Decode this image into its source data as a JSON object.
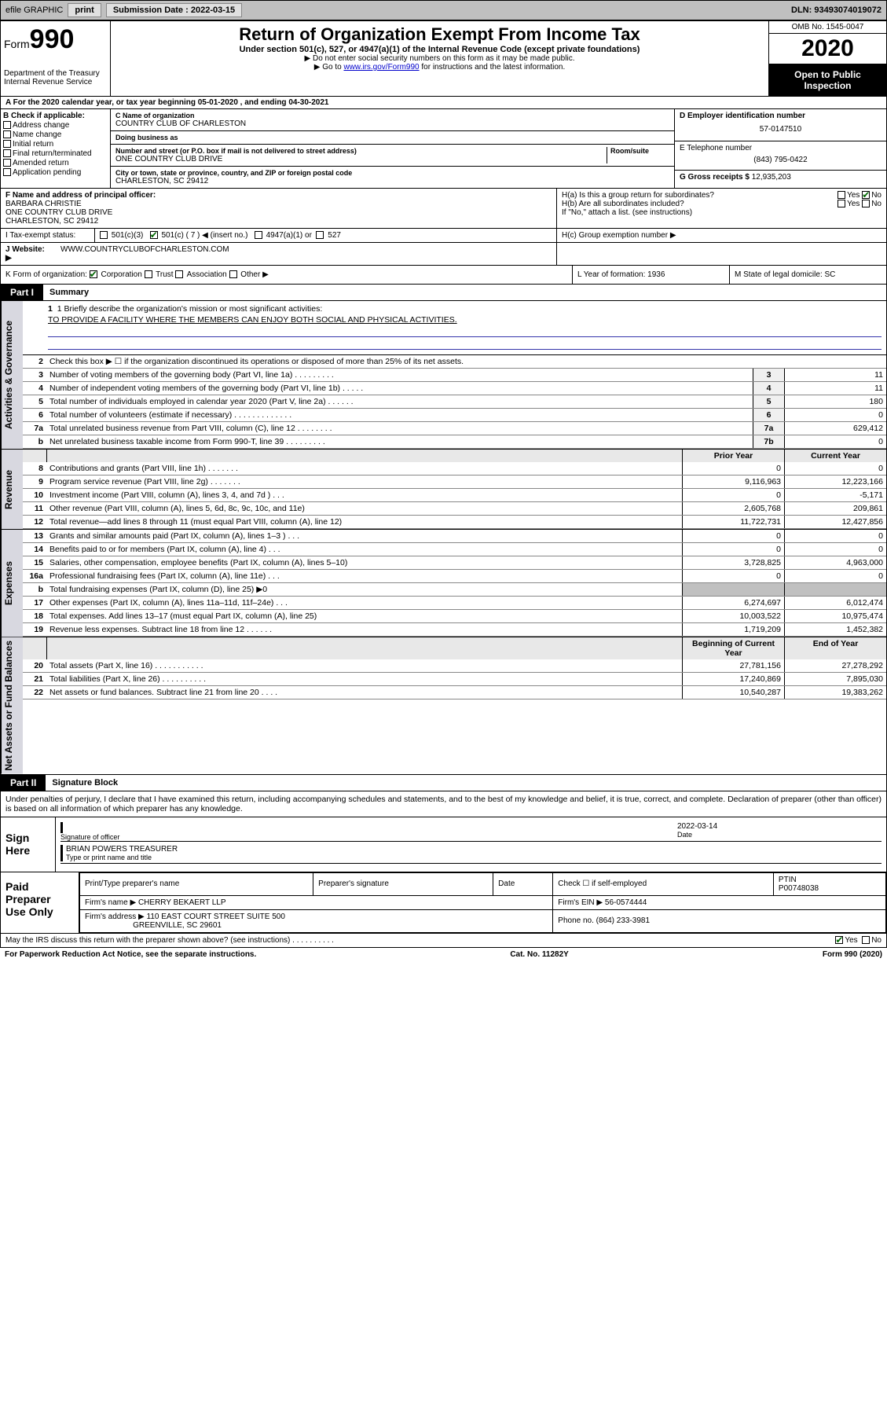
{
  "topbar": {
    "efile": "efile GRAPHIC",
    "print": "print",
    "subdate_lbl": "Submission Date :",
    "subdate": "2022-03-15",
    "dln_lbl": "DLN:",
    "dln": "93493074019072"
  },
  "header": {
    "form_lbl": "Form",
    "form_num": "990",
    "dept1": "Department of the Treasury",
    "dept2": "Internal Revenue Service",
    "title": "Return of Organization Exempt From Income Tax",
    "sub": "Under section 501(c), 527, or 4947(a)(1) of the Internal Revenue Code (except private foundations)",
    "note1": "▶ Do not enter social security numbers on this form as it may be made public.",
    "note2_pre": "▶ Go to ",
    "note2_link": "www.irs.gov/Form990",
    "note2_post": " for instructions and the latest information.",
    "omb": "OMB No. 1545-0047",
    "year": "2020",
    "open": "Open to Public Inspection"
  },
  "period": {
    "text": "A For the 2020 calendar year, or tax year beginning 05-01-2020    , and ending 04-30-2021"
  },
  "blockB": {
    "hdr": "B Check if applicable:",
    "c1": "Address change",
    "c2": "Name change",
    "c3": "Initial return",
    "c4": "Final return/terminated",
    "c5": "Amended return",
    "c6": "Application pending"
  },
  "blockC": {
    "name_lbl": "C Name of organization",
    "name": "COUNTRY CLUB OF CHARLESTON",
    "dba_lbl": "Doing business as",
    "dba": "",
    "addr_lbl": "Number and street (or P.O. box if mail is not delivered to street address)",
    "room_lbl": "Room/suite",
    "addr": "ONE COUNTRY CLUB DRIVE",
    "city_lbl": "City or town, state or province, country, and ZIP or foreign postal code",
    "city": "CHARLESTON, SC  29412"
  },
  "blockD": {
    "ein_lbl": "D Employer identification number",
    "ein": "57-0147510",
    "tel_lbl": "E Telephone number",
    "tel": "(843) 795-0422",
    "gross_lbl": "G Gross receipts $",
    "gross": "12,935,203"
  },
  "blockF": {
    "lbl": "F  Name and address of principal officer:",
    "name": "BARBARA CHRISTIE",
    "addr1": "ONE COUNTRY CLUB DRIVE",
    "addr2": "CHARLESTON, SC  29412"
  },
  "blockH": {
    "ha": "H(a)  Is this a group return for subordinates?",
    "hb": "H(b)  Are all subordinates included?",
    "hb_note": "If \"No,\" attach a list. (see instructions)",
    "hc": "H(c)  Group exemption number ▶",
    "yes": "Yes",
    "no": "No"
  },
  "taxstatus": {
    "lbl": "I   Tax-exempt status:",
    "o1": "501(c)(3)",
    "o2": "501(c) ( 7 ) ◀ (insert no.)",
    "o3": "4947(a)(1) or",
    "o4": "527"
  },
  "website": {
    "lbl": "J   Website: ▶",
    "val": "WWW.COUNTRYCLUBOFCHARLESTON.COM"
  },
  "rowK": {
    "k": "K Form of organization:",
    "corp": "Corporation",
    "trust": "Trust",
    "assoc": "Association",
    "other": "Other ▶",
    "l_lbl": "L Year of formation:",
    "l_val": "1936",
    "m_lbl": "M State of legal domicile:",
    "m_val": "SC"
  },
  "part1": {
    "tab": "Part I",
    "title": "Summary",
    "mission_lbl": "1  Briefly describe the organization's mission or most significant activities:",
    "mission": "TO PROVIDE A FACILITY WHERE THE MEMBERS CAN ENJOY BOTH SOCIAL AND PHYSICAL ACTIVITIES.",
    "l2": "Check this box ▶ ☐  if the organization discontinued its operations or disposed of more than 25% of its net assets.",
    "sidelabels": {
      "gov": "Activities & Governance",
      "rev": "Revenue",
      "exp": "Expenses",
      "net": "Net Assets or Fund Balances"
    },
    "govLines": [
      {
        "n": "2",
        "t": "Check this box ▶ ☐  if the organization discontinued its operations or disposed of more than 25% of its net assets.",
        "cn": "",
        "v": ""
      },
      {
        "n": "3",
        "t": "Number of voting members of the governing body (Part VI, line 1a)   .    .    .    .    .    .    .    .    .",
        "cn": "3",
        "v": "11"
      },
      {
        "n": "4",
        "t": "Number of independent voting members of the governing body (Part VI, line 1b)   .    .    .    .    .",
        "cn": "4",
        "v": "11"
      },
      {
        "n": "5",
        "t": "Total number of individuals employed in calendar year 2020 (Part V, line 2a)   .    .    .    .    .    .",
        "cn": "5",
        "v": "180"
      },
      {
        "n": "6",
        "t": "Total number of volunteers (estimate if necessary)   .    .    .    .    .    .    .    .    .    .    .    .    .",
        "cn": "6",
        "v": "0"
      },
      {
        "n": "7a",
        "t": "Total unrelated business revenue from Part VIII, column (C), line 12   .    .    .    .    .    .    .    .",
        "cn": "7a",
        "v": "629,412"
      },
      {
        "n": "b",
        "t": "Net unrelated business taxable income from Form 990-T, line 39   .    .    .    .    .    .    .    .    .",
        "cn": "7b",
        "v": "0"
      }
    ],
    "colhdr": {
      "prior": "Prior Year",
      "current": "Current Year"
    },
    "revLines": [
      {
        "n": "8",
        "t": "Contributions and grants (Part VIII, line 1h)   .    .    .    .    .    .    .",
        "p": "0",
        "c": "0"
      },
      {
        "n": "9",
        "t": "Program service revenue (Part VIII, line 2g)   .    .    .    .    .    .    .",
        "p": "9,116,963",
        "c": "12,223,166"
      },
      {
        "n": "10",
        "t": "Investment income (Part VIII, column (A), lines 3, 4, and 7d )   .    .    .",
        "p": "0",
        "c": "-5,171"
      },
      {
        "n": "11",
        "t": "Other revenue (Part VIII, column (A), lines 5, 6d, 8c, 9c, 10c, and 11e)",
        "p": "2,605,768",
        "c": "209,861"
      },
      {
        "n": "12",
        "t": "Total revenue—add lines 8 through 11 (must equal Part VIII, column (A), line 12)",
        "p": "11,722,731",
        "c": "12,427,856"
      }
    ],
    "expLines": [
      {
        "n": "13",
        "t": "Grants and similar amounts paid (Part IX, column (A), lines 1–3 )   .    .    .",
        "p": "0",
        "c": "0"
      },
      {
        "n": "14",
        "t": "Benefits paid to or for members (Part IX, column (A), line 4)   .    .    .",
        "p": "0",
        "c": "0"
      },
      {
        "n": "15",
        "t": "Salaries, other compensation, employee benefits (Part IX, column (A), lines 5–10)",
        "p": "3,728,825",
        "c": "4,963,000"
      },
      {
        "n": "16a",
        "t": "Professional fundraising fees (Part IX, column (A), line 11e)   .    .    .",
        "p": "0",
        "c": "0"
      },
      {
        "n": "b",
        "t": "Total fundraising expenses (Part IX, column (D), line 25) ▶0",
        "p": "",
        "c": "",
        "shaded": true
      },
      {
        "n": "17",
        "t": "Other expenses (Part IX, column (A), lines 11a–11d, 11f–24e)   .    .    .",
        "p": "6,274,697",
        "c": "6,012,474"
      },
      {
        "n": "18",
        "t": "Total expenses. Add lines 13–17 (must equal Part IX, column (A), line 25)",
        "p": "10,003,522",
        "c": "10,975,474"
      },
      {
        "n": "19",
        "t": "Revenue less expenses. Subtract line 18 from line 12   .    .    .    .    .    .",
        "p": "1,719,209",
        "c": "1,452,382"
      }
    ],
    "colhdr2": {
      "prior": "Beginning of Current Year",
      "current": "End of Year"
    },
    "netLines": [
      {
        "n": "20",
        "t": "Total assets (Part X, line 16)   .    .    .    .    .    .    .    .    .    .    .",
        "p": "27,781,156",
        "c": "27,278,292"
      },
      {
        "n": "21",
        "t": "Total liabilities (Part X, line 26)   .    .    .    .    .    .    .    .    .    .",
        "p": "17,240,869",
        "c": "7,895,030"
      },
      {
        "n": "22",
        "t": "Net assets or fund balances. Subtract line 21 from line 20   .    .    .    .",
        "p": "10,540,287",
        "c": "19,383,262"
      }
    ]
  },
  "part2": {
    "tab": "Part II",
    "title": "Signature Block",
    "decl": "Under penalties of perjury, I declare that I have examined this return, including accompanying schedules and statements, and to the best of my knowledge and belief, it is true, correct, and complete. Declaration of preparer (other than officer) is based on all information of which preparer has any knowledge."
  },
  "sign": {
    "lbl": "Sign Here",
    "sig_lbl": "Signature of officer",
    "date_lbl": "Date",
    "date": "2022-03-14",
    "name": "BRIAN POWERS  TREASURER",
    "name_lbl": "Type or print name and title"
  },
  "prep": {
    "lbl": "Paid Preparer Use Only",
    "h1": "Print/Type preparer's name",
    "h2": "Preparer's signature",
    "h3": "Date",
    "h4_pre": "Check ☐ if self-employed",
    "h5_lbl": "PTIN",
    "h5": "P00748038",
    "firm_lbl": "Firm's name      ▶",
    "firm": "CHERRY BEKAERT LLP",
    "ein_lbl": "Firm's EIN ▶",
    "ein": "56-0574444",
    "addr_lbl": "Firm's address ▶",
    "addr1": "110 EAST COURT STREET SUITE 500",
    "addr2": "GREENVILLE, SC  29601",
    "phone_lbl": "Phone no.",
    "phone": "(864) 233-3981"
  },
  "footer": {
    "discuss": "May the IRS discuss this return with the preparer shown above? (see instructions)   .    .    .    .    .    .    .    .    .    .",
    "yes": "Yes",
    "no": "No",
    "pra": "For Paperwork Reduction Act Notice, see the separate instructions.",
    "cat": "Cat. No. 11282Y",
    "formv": "Form 990 (2020)"
  }
}
